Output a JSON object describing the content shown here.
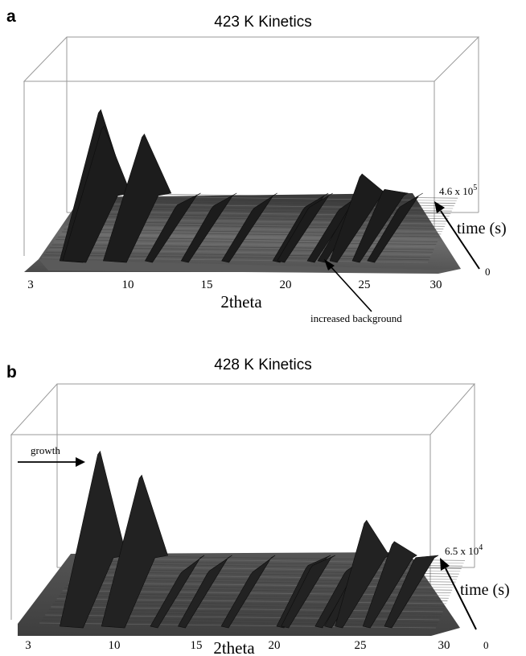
{
  "chart_data": [
    {
      "type": "area",
      "panel_label": "a",
      "title": "423 K Kinetics",
      "xlabel": "2theta",
      "xlim": [
        3,
        30
      ],
      "x_ticks": [
        "3",
        "10",
        "15",
        "20",
        "25",
        "30"
      ],
      "time_label": "time (s)",
      "time_max_base": "4.6 x 10",
      "time_max_exp": "5",
      "time_min": "0",
      "annotation": "increased background",
      "peaks": [
        {
          "x": 5.8,
          "height": 1.0
        },
        {
          "x": 6.0,
          "height": 0.85
        },
        {
          "x": 8.7,
          "height": 0.78
        },
        {
          "x": 10.9,
          "height": 0.14
        },
        {
          "x": 13.3,
          "height": 0.13
        },
        {
          "x": 16.0,
          "height": 0.11
        },
        {
          "x": 19.4,
          "height": 0.12
        },
        {
          "x": 19.7,
          "height": 0.12
        },
        {
          "x": 21.7,
          "height": 0.1
        },
        {
          "x": 22.4,
          "height": 0.12
        },
        {
          "x": 23.2,
          "height": 0.42
        },
        {
          "x": 24.7,
          "height": 0.28
        },
        {
          "x": 25.7,
          "height": 0.12
        }
      ]
    },
    {
      "type": "area",
      "panel_label": "b",
      "title": "428 K Kinetics",
      "xlabel": "2theta",
      "xlim": [
        3,
        30
      ],
      "x_ticks": [
        "3",
        "10",
        "15",
        "20",
        "25",
        "30"
      ],
      "time_label": "time (s)",
      "time_max_base": "6.5 x 10",
      "time_max_exp": "4",
      "time_min": "0",
      "annotation": "growth",
      "peaks": [
        {
          "x": 5.9,
          "height": 1.0
        },
        {
          "x": 8.6,
          "height": 0.82
        },
        {
          "x": 11.2,
          "height": 0.09
        },
        {
          "x": 13.0,
          "height": 0.1
        },
        {
          "x": 15.8,
          "height": 0.09
        },
        {
          "x": 19.4,
          "height": 0.14
        },
        {
          "x": 19.7,
          "height": 0.14
        },
        {
          "x": 21.9,
          "height": 0.1
        },
        {
          "x": 22.5,
          "height": 0.1
        },
        {
          "x": 23.2,
          "height": 0.48
        },
        {
          "x": 25.0,
          "height": 0.32
        },
        {
          "x": 26.4,
          "height": 0.2
        }
      ]
    }
  ]
}
